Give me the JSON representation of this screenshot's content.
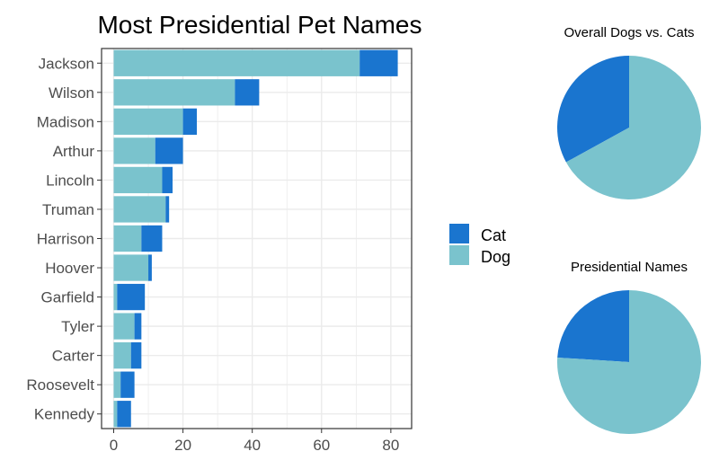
{
  "colors": {
    "cat": "#1a75cf",
    "dog": "#7ac3cd",
    "grid": "#ebebeb",
    "text": "#4d4d4d",
    "title": "#000000"
  },
  "chart_data": [
    {
      "type": "bar",
      "orientation": "horizontal",
      "stacked": true,
      "title": "Most Presidential Pet Names",
      "categories": [
        "Jackson",
        "Wilson",
        "Madison",
        "Arthur",
        "Lincoln",
        "Truman",
        "Harrison",
        "Hoover",
        "Garfield",
        "Tyler",
        "Carter",
        "Roosevelt",
        "Kennedy"
      ],
      "series": [
        {
          "name": "Dog",
          "values": [
            71,
            35,
            20,
            12,
            14,
            15,
            8,
            10,
            1,
            6,
            5,
            2,
            1
          ]
        },
        {
          "name": "Cat",
          "values": [
            11,
            7,
            4,
            8,
            3,
            1,
            6,
            1,
            8,
            2,
            3,
            4,
            4
          ]
        }
      ],
      "xticks": [
        0,
        20,
        40,
        60,
        80
      ],
      "xlim": [
        -3.5,
        86
      ],
      "grid": true,
      "legend": "right"
    },
    {
      "type": "pie",
      "title": "Overall Dogs vs. Cats",
      "slices": [
        {
          "name": "Cat",
          "value": 33
        },
        {
          "name": "Dog",
          "value": 67
        }
      ]
    },
    {
      "type": "pie",
      "title": "Presidential Names",
      "slices": [
        {
          "name": "Cat",
          "value": 24
        },
        {
          "name": "Dog",
          "value": 76
        }
      ]
    }
  ]
}
